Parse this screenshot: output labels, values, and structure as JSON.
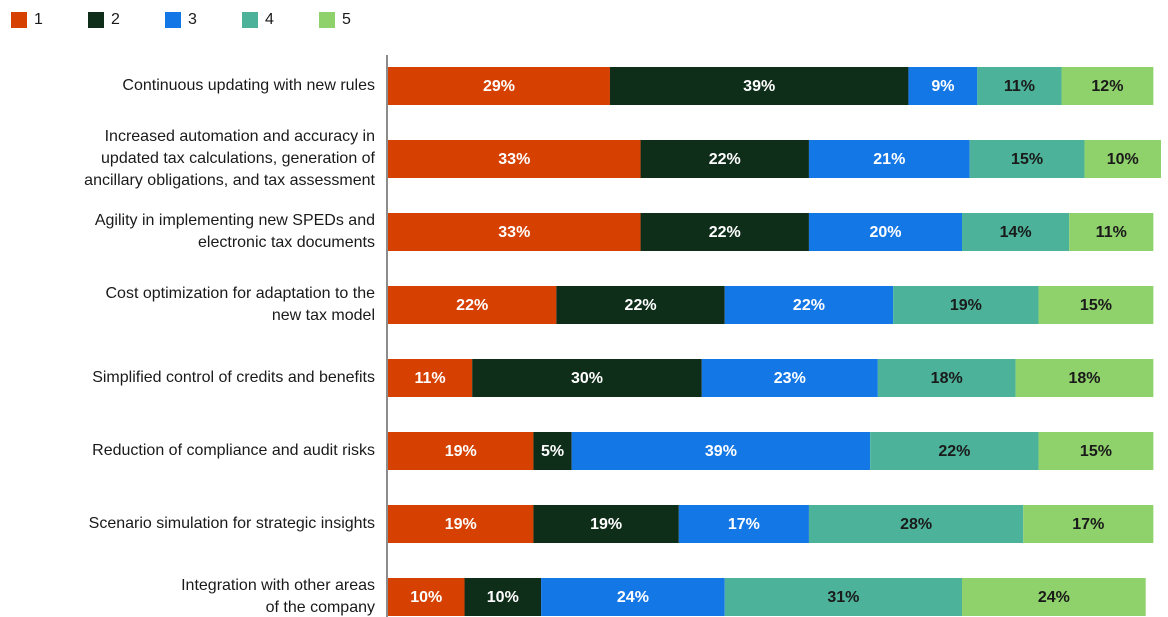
{
  "chart_data": {
    "type": "stacked-bar-horizontal",
    "categories": [
      "Continuous updating with new rules",
      "Increased automation and accuracy in\nupdated tax calculations, generation of\nancillary obligations, and tax assessment",
      "Agility in implementing new SPEDs and\nelectronic tax documents",
      "Cost optimization for adaptation to the\nnew tax model",
      "Simplified control of credits and benefits",
      "Reduction of compliance and audit risks",
      "Scenario simulation for strategic insights",
      "Integration with other areas\nof the company"
    ],
    "series": [
      {
        "name": "1",
        "color": "#d64000",
        "values": [
          29,
          33,
          33,
          22,
          11,
          19,
          19,
          10
        ],
        "value_labels": [
          "29%",
          "33%",
          "33%",
          "22%",
          "11%",
          "19%",
          "19%",
          "10%"
        ]
      },
      {
        "name": "2",
        "color": "#0f2e1a",
        "values": [
          39,
          22,
          22,
          22,
          30,
          5,
          19,
          10
        ],
        "value_labels": [
          "39%",
          "22%",
          "22%",
          "22%",
          "30%",
          "5%",
          "19%",
          "10%"
        ]
      },
      {
        "name": "3",
        "color": "#1477e6",
        "values": [
          9,
          21,
          20,
          22,
          23,
          39,
          17,
          24
        ],
        "value_labels": [
          "9%",
          "21%",
          "20%",
          "22%",
          "23%",
          "39%",
          "17%",
          "24%"
        ]
      },
      {
        "name": "4",
        "color": "#4cb39a",
        "values": [
          11,
          15,
          14,
          19,
          18,
          22,
          28,
          31
        ],
        "value_labels": [
          "11%",
          "15%",
          "14%",
          "19%",
          "18%",
          "22%",
          "28%",
          "31%"
        ]
      },
      {
        "name": "5",
        "color": "#8fd16b",
        "values": [
          12,
          10,
          11,
          15,
          18,
          15,
          17,
          24
        ],
        "value_labels": [
          "12%",
          "10%",
          "11%",
          "15%",
          "18%",
          "15%",
          "17%",
          "24%"
        ]
      }
    ],
    "xlim": [
      0,
      101
    ],
    "legend": "top-left"
  }
}
